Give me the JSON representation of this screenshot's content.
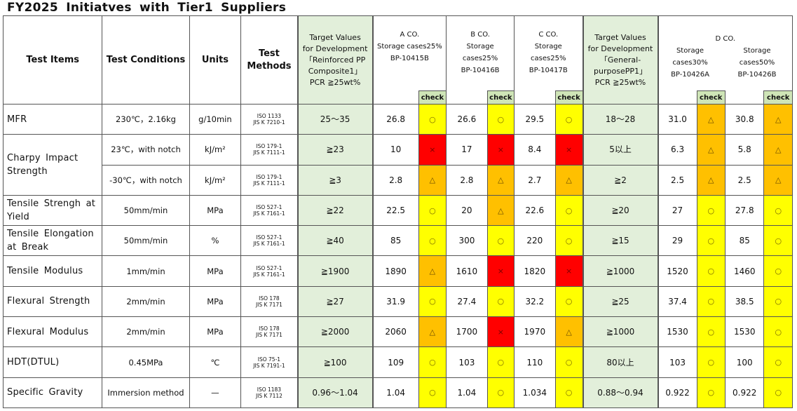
{
  "title": "FY2025 Initiatves with Tier1 Suppliers",
  "headers": {
    "test_items": "Test Items",
    "test_conditions": "Test Conditions",
    "units": "Units",
    "test_methods_1": "Test",
    "test_methods_2": "Methods",
    "target_reinforced": [
      "Target Values",
      "for Development",
      "「Reinforced PP",
      "Composite1」",
      "PCR ≧25wt%"
    ],
    "target_general": [
      "Target Values",
      "for Development",
      "「General-",
      "purposePP1」",
      "PCR ≧25wt%"
    ],
    "a_co": [
      "A CO.",
      "Storage cases25%",
      "BP-10415B"
    ],
    "b_co": [
      "B CO.",
      "Storage",
      "cases25%",
      "BP-10416B"
    ],
    "c_co": [
      "C CO.",
      "Storage",
      "cases25%",
      "BP-10417B"
    ],
    "d_co": "D CO.",
    "d1": [
      "Storage",
      "cases30%",
      "BP-10426A"
    ],
    "d2": [
      "Storage",
      "cases50%",
      "BP-10426B"
    ],
    "check": "check"
  },
  "marks": {
    "ok": "○",
    "fair": "△",
    "ng": "×"
  },
  "colors": {
    "ok": "#ffff00",
    "fair": "#ffc000",
    "ng": "#ff0000",
    "target_bg": "#e2efda",
    "check_header": "#cfe5b7"
  },
  "rows": [
    {
      "item": "MFR",
      "cond": "230℃，2.16kg",
      "unit": "g/10min",
      "method": [
        "ISO 1133",
        "JIS K 7210-1"
      ],
      "target1": "25～35",
      "a": "26.8",
      "a_chk": "○",
      "b": "26.6",
      "b_chk": "○",
      "c": "29.5",
      "c_chk": "○",
      "target2": "18～28",
      "d1": "31.0",
      "d1_chk": "△",
      "d2": "30.8",
      "d2_chk": "△"
    },
    {
      "item": "Charpy Impact Strength",
      "cond": "23℃，with notch",
      "unit": "kJ/m²",
      "method": [
        "ISO 179-1",
        "JIS K 7111-1"
      ],
      "target1": "≧23",
      "a": "10",
      "a_chk": "×",
      "b": "17",
      "b_chk": "×",
      "c": "8.4",
      "c_chk": "×",
      "target2": "5以上",
      "d1": "6.3",
      "d1_chk": "△",
      "d2": "5.8",
      "d2_chk": "△"
    },
    {
      "item": "",
      "cond": "-30℃，with notch",
      "unit": "kJ/m²",
      "method": [
        "ISO 179-1",
        "JIS K 7111-1"
      ],
      "target1": "≧3",
      "a": "2.8",
      "a_chk": "△",
      "b": "2.8",
      "b_chk": "△",
      "c": "2.7",
      "c_chk": "△",
      "target2": "≧2",
      "d1": "2.5",
      "d1_chk": "△",
      "d2": "2.5",
      "d2_chk": "△"
    },
    {
      "item": "Tensile Strengh at Yield",
      "cond": "50mm/min",
      "unit": "MPa",
      "method": [
        "ISO 527-1",
        "JIS K 7161-1"
      ],
      "target1": "≧22",
      "a": "22.5",
      "a_chk": "○",
      "b": "20",
      "b_chk": "△",
      "c": "22.6",
      "c_chk": "○",
      "target2": "≧20",
      "d1": "27",
      "d1_chk": "○",
      "d2": "27.8",
      "d2_chk": "○"
    },
    {
      "item": "Tensile Elongation at Break",
      "cond": "50mm/min",
      "unit": "%",
      "method": [
        "ISO 527-1",
        "JIS K 7161-1"
      ],
      "target1": "≧40",
      "a": "85",
      "a_chk": "○",
      "b": "300",
      "b_chk": "○",
      "c": "220",
      "c_chk": "○",
      "target2": "≧15",
      "d1": "29",
      "d1_chk": "○",
      "d2": "85",
      "d2_chk": "○"
    },
    {
      "item": "Tensile Modulus",
      "cond": "1mm/min",
      "unit": "MPa",
      "method": [
        "ISO 527-1",
        "JIS K 7161-1"
      ],
      "target1": "≧1900",
      "a": "1890",
      "a_chk": "△",
      "b": "1610",
      "b_chk": "×",
      "c": "1820",
      "c_chk": "×",
      "target2": "≧1000",
      "d1": "1520",
      "d1_chk": "○",
      "d2": "1460",
      "d2_chk": "○"
    },
    {
      "item": "Flexural Strength",
      "cond": "2mm/min",
      "unit": "MPa",
      "method": [
        "ISO 178",
        "JIS K 7171"
      ],
      "target1": "≧27",
      "a": "31.9",
      "a_chk": "○",
      "b": "27.4",
      "b_chk": "○",
      "c": "32.2",
      "c_chk": "○",
      "target2": "≧25",
      "d1": "37.4",
      "d1_chk": "○",
      "d2": "38.5",
      "d2_chk": "○"
    },
    {
      "item": "Flexural Modulus",
      "cond": "2mm/min",
      "unit": "MPa",
      "method": [
        "ISO 178",
        "JIS K 7171"
      ],
      "target1": "≧2000",
      "a": "2060",
      "a_chk": "△",
      "b": "1700",
      "b_chk": "×",
      "c": "1970",
      "c_chk": "△",
      "target2": "≧1000",
      "d1": "1530",
      "d1_chk": "○",
      "d2": "1530",
      "d2_chk": "○"
    },
    {
      "item": "HDT(DTUL)",
      "cond": "0.45MPa",
      "unit": "℃",
      "method": [
        "ISO 75-1",
        "JIS K 7191-1"
      ],
      "target1": "≧100",
      "a": "109",
      "a_chk": "○",
      "b": "103",
      "b_chk": "○",
      "c": "110",
      "c_chk": "○",
      "target2": "80以上",
      "d1": "103",
      "d1_chk": "○",
      "d2": "100",
      "d2_chk": "○"
    },
    {
      "item": "Specific Gravity",
      "cond": "Immersion method",
      "unit": "—",
      "method": [
        "ISO 1183",
        "JIS K 7112"
      ],
      "target1": "0.96～1.04",
      "a": "1.04",
      "a_chk": "○",
      "b": "1.04",
      "b_chk": "○",
      "c": "1.034",
      "c_chk": "○",
      "target2": "0.88～0.94",
      "d1": "0.922",
      "d1_chk": "○",
      "d2": "0.922",
      "d2_chk": "○"
    }
  ]
}
